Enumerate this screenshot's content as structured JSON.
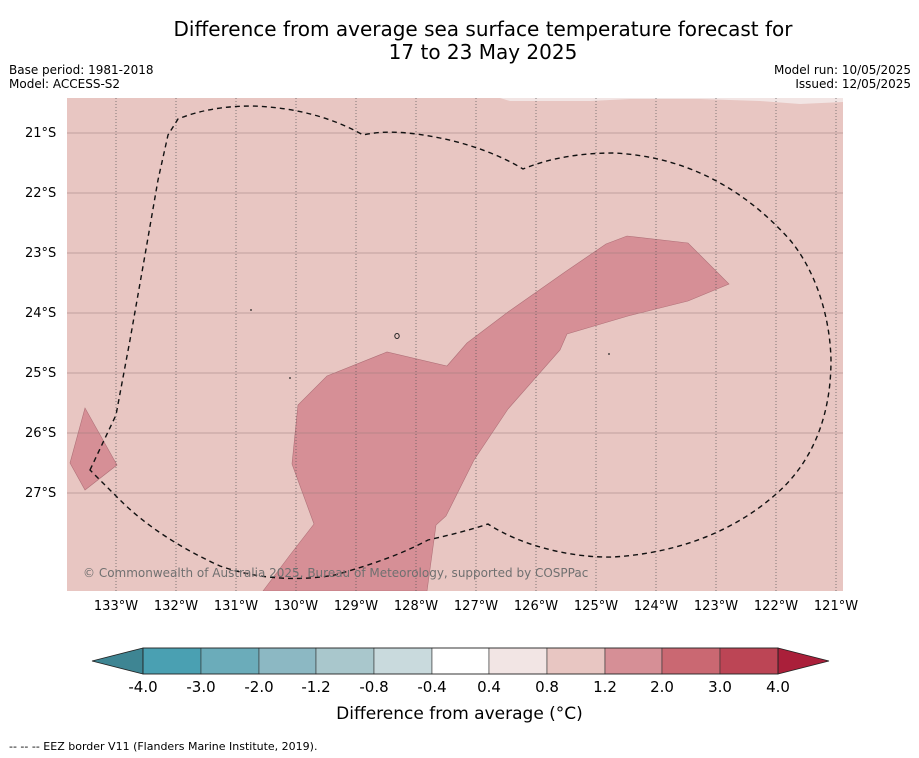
{
  "title_line1": "Difference from average sea surface temperature forecast for",
  "title_line2": "17 to 23 May 2025",
  "base_period": "Base period: 1981-2018",
  "model": "Model: ACCESS-S2",
  "model_run": "Model run: 10/05/2025",
  "issued": "Issued: 12/05/2025",
  "copyright": "© Commonwealth of Australia 2025, Bureau of Meteorology, supported by COSPPac",
  "footnote": "--  --  -- EEZ border V11 (Flanders Marine Institute, 2019).",
  "lat_labels": [
    "21°S",
    "22°S",
    "23°S",
    "24°S",
    "25°S",
    "26°S",
    "27°S"
  ],
  "lon_labels": [
    "133°W",
    "132°W",
    "131°W",
    "130°W",
    "129°W",
    "128°W",
    "127°W",
    "126°W",
    "125°W",
    "124°W",
    "123°W",
    "122°W",
    "121°W"
  ],
  "colorbar": {
    "title": "Difference from average (°C)",
    "ticks": [
      "-4.0",
      "-3.0",
      "-2.0",
      "-1.2",
      "-0.8",
      "-0.4",
      "0.4",
      "0.8",
      "1.2",
      "2.0",
      "3.0",
      "4.0"
    ],
    "colors": [
      "#4aa0b2",
      "#6bacba",
      "#8cb8c3",
      "#a9c7cc",
      "#c9dadd",
      "#ffffff",
      "#f2e5e4",
      "#e8c6c2",
      "#d68f96",
      "#ca6872",
      "#bc4555"
    ],
    "under_color": "#3e8593",
    "over_color": "#aa1f3a"
  },
  "map": {
    "background_color": "#e8c6c2",
    "anomaly_color": "#d68f96",
    "near_normal_color": "#f2e5e4"
  }
}
